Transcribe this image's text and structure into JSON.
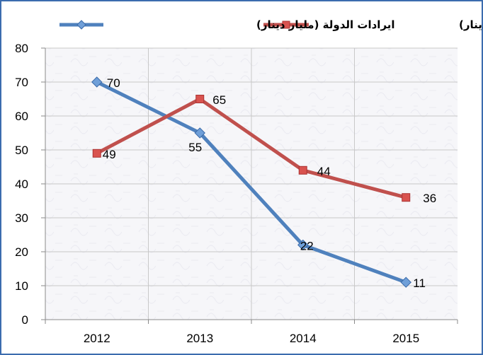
{
  "chart_data": {
    "type": "line",
    "categories": [
      "2012",
      "2013",
      "2014",
      "2015"
    ],
    "series": [
      {
        "name": "ايرادات الدولة (مليار دينار)",
        "values": [
          70,
          55,
          22,
          11
        ],
        "color": "#4f81bd",
        "marker_color": "#6f9fd8",
        "labels": [
          "70",
          "55",
          "22",
          "11"
        ]
      },
      {
        "name": "اجمالي الانفاق (مليار دينار)",
        "values": [
          49,
          65,
          44,
          36
        ],
        "color": "#c0504d",
        "marker_color": "#d9534f",
        "labels": [
          "49",
          "65",
          "44",
          "36"
        ]
      }
    ],
    "ylim": [
      0,
      80
    ],
    "yticks": [
      "0",
      "10",
      "20",
      "30",
      "40",
      "50",
      "60",
      "70",
      "80"
    ],
    "grid": true,
    "legend_position": "top",
    "title": "",
    "xlabel": "",
    "ylabel": ""
  }
}
